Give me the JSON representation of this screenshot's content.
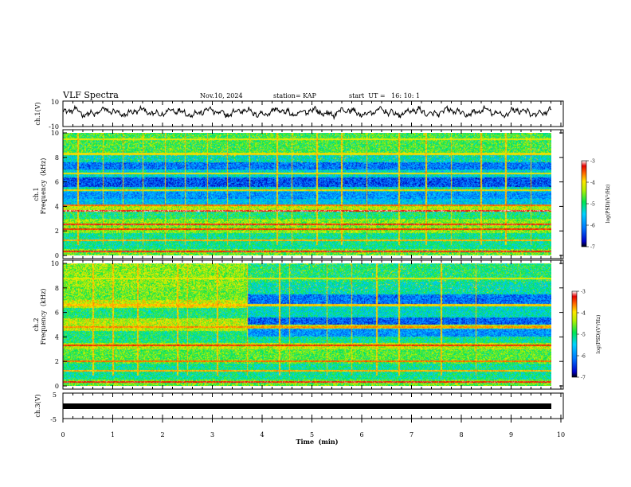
{
  "header": {
    "title": "VLF Spectra",
    "date": "Nov.10, 2024",
    "station": "station= KAP",
    "start": "start  UT =   16: 10: 1"
  },
  "chart_data": [
    {
      "type": "line",
      "ylabel": "ch.1(V)",
      "ylim": [
        -10,
        10
      ],
      "yticks": [
        "10",
        "-10"
      ],
      "xlim": [
        0,
        10
      ],
      "note": "oscillating waveform, amplitude roughly -4 to 6 V"
    },
    {
      "type": "heatmap",
      "ylabel_line1": "ch.1",
      "ylabel_line2": "Frequency  (kHz)",
      "ylim": [
        0,
        10
      ],
      "yticks": [
        "0",
        "2",
        "4",
        "6",
        "8",
        "10"
      ],
      "colorbar": {
        "label": "log(PSD)(V²/Hz)",
        "range": [
          -7,
          -3
        ],
        "ticks": [
          "-3",
          "-4",
          "-5",
          "-6",
          "-7"
        ]
      },
      "bands": [
        {
          "lo": 0.0,
          "hi": 0.5,
          "level": -4.6
        },
        {
          "lo": 0.5,
          "hi": 1.8,
          "level": -5.1
        },
        {
          "lo": 1.8,
          "hi": 3.0,
          "level": -4.5
        },
        {
          "lo": 3.0,
          "hi": 3.6,
          "level": -5.0
        },
        {
          "lo": 3.6,
          "hi": 4.0,
          "level": -4.3
        },
        {
          "lo": 4.0,
          "hi": 4.6,
          "level": -5.6
        },
        {
          "lo": 4.6,
          "hi": 5.2,
          "level": -5.9
        },
        {
          "lo": 5.2,
          "hi": 5.6,
          "level": -5.3
        },
        {
          "lo": 5.6,
          "hi": 6.4,
          "level": -6.3
        },
        {
          "lo": 6.4,
          "hi": 7.0,
          "level": -5.4
        },
        {
          "lo": 7.0,
          "hi": 7.6,
          "level": -6.1
        },
        {
          "lo": 7.6,
          "hi": 8.2,
          "level": -5.3
        },
        {
          "lo": 8.2,
          "hi": 10.0,
          "level": -4.8
        }
      ],
      "lines": [
        {
          "f": 0.3,
          "level": -3.3
        },
        {
          "f": 1.2,
          "level": -3.8
        },
        {
          "f": 2.1,
          "level": -3.4
        },
        {
          "f": 2.5,
          "level": -3.3
        },
        {
          "f": 3.6,
          "level": -3.2
        },
        {
          "f": 4.1,
          "level": -3.6
        },
        {
          "f": 5.3,
          "level": -3.9
        },
        {
          "f": 6.7,
          "level": -4.0
        },
        {
          "f": 8.3,
          "level": -4.0
        },
        {
          "f": 9.5,
          "level": -4.1
        }
      ],
      "spikes_min": [
        0.3,
        0.8,
        1.2,
        1.6,
        2.05,
        2.45,
        2.9,
        3.3,
        3.75,
        4.3,
        4.6,
        5.1,
        5.6,
        6.1,
        6.75,
        7.3,
        7.8,
        8.4,
        8.9,
        9.4
      ]
    },
    {
      "type": "heatmap",
      "ylabel_line1": "ch.2",
      "ylabel_line2": "Frequency  (kHz)",
      "ylim": [
        0,
        10
      ],
      "yticks": [
        "0",
        "2",
        "4",
        "6",
        "8",
        "10"
      ],
      "colorbar": {
        "label": "log(PSD)(V²/Hz)",
        "range": [
          -7,
          -3
        ],
        "ticks": [
          "-3",
          "-4",
          "-5",
          "-6",
          "-7"
        ]
      },
      "regime_change_min": 3.7,
      "bands_before": [
        {
          "lo": 0.0,
          "hi": 0.5,
          "level": -4.6
        },
        {
          "lo": 0.5,
          "hi": 1.8,
          "level": -5.1
        },
        {
          "lo": 1.8,
          "hi": 3.0,
          "level": -4.7
        },
        {
          "lo": 3.0,
          "hi": 3.5,
          "level": -4.3
        },
        {
          "lo": 3.5,
          "hi": 4.5,
          "level": -5.0
        },
        {
          "lo": 4.5,
          "hi": 5.5,
          "level": -4.3
        },
        {
          "lo": 5.5,
          "hi": 6.4,
          "level": -5.0
        },
        {
          "lo": 6.4,
          "hi": 7.0,
          "level": -4.2
        },
        {
          "lo": 7.0,
          "hi": 8.0,
          "level": -4.6
        },
        {
          "lo": 8.0,
          "hi": 10.0,
          "level": -4.5
        }
      ],
      "bands_after": [
        {
          "lo": 0.0,
          "hi": 0.5,
          "level": -4.6
        },
        {
          "lo": 0.5,
          "hi": 1.8,
          "level": -5.1
        },
        {
          "lo": 1.8,
          "hi": 3.0,
          "level": -4.7
        },
        {
          "lo": 3.0,
          "hi": 3.5,
          "level": -4.3
        },
        {
          "lo": 3.5,
          "hi": 4.0,
          "level": -5.1
        },
        {
          "lo": 4.0,
          "hi": 4.7,
          "level": -5.9
        },
        {
          "lo": 4.7,
          "hi": 5.0,
          "level": -4.2
        },
        {
          "lo": 5.0,
          "hi": 5.6,
          "level": -6.2
        },
        {
          "lo": 5.6,
          "hi": 6.5,
          "level": -5.3
        },
        {
          "lo": 6.5,
          "hi": 7.5,
          "level": -6.1
        },
        {
          "lo": 7.5,
          "hi": 8.5,
          "level": -5.2
        },
        {
          "lo": 8.5,
          "hi": 10.0,
          "level": -5.0
        }
      ],
      "lines": [
        {
          "f": 0.3,
          "level": -3.3
        },
        {
          "f": 1.2,
          "level": -3.8
        },
        {
          "f": 2.0,
          "level": -3.6
        },
        {
          "f": 3.3,
          "level": -3.4
        },
        {
          "f": 4.8,
          "level": -3.7
        },
        {
          "f": 6.6,
          "level": -3.9
        },
        {
          "f": 8.8,
          "level": -4.1
        }
      ],
      "spikes_min": [
        0.6,
        1.0,
        1.5,
        2.3,
        2.5,
        3.1,
        3.7,
        4.35,
        4.55,
        5.3,
        5.8,
        6.3,
        6.75,
        7.6,
        8.3
      ]
    },
    {
      "type": "line",
      "ylabel": "ch.3(V)",
      "ylim": [
        -5,
        5
      ],
      "yticks": [
        "5",
        "-5"
      ],
      "xlim": [
        0,
        10
      ],
      "xlabel": "Time  (min)",
      "xticks": [
        "0",
        "1",
        "2",
        "3",
        "4",
        "5",
        "6",
        "7",
        "8",
        "9",
        "10"
      ],
      "note": "thick flat trace near -1.5 V for the whole interval"
    }
  ]
}
